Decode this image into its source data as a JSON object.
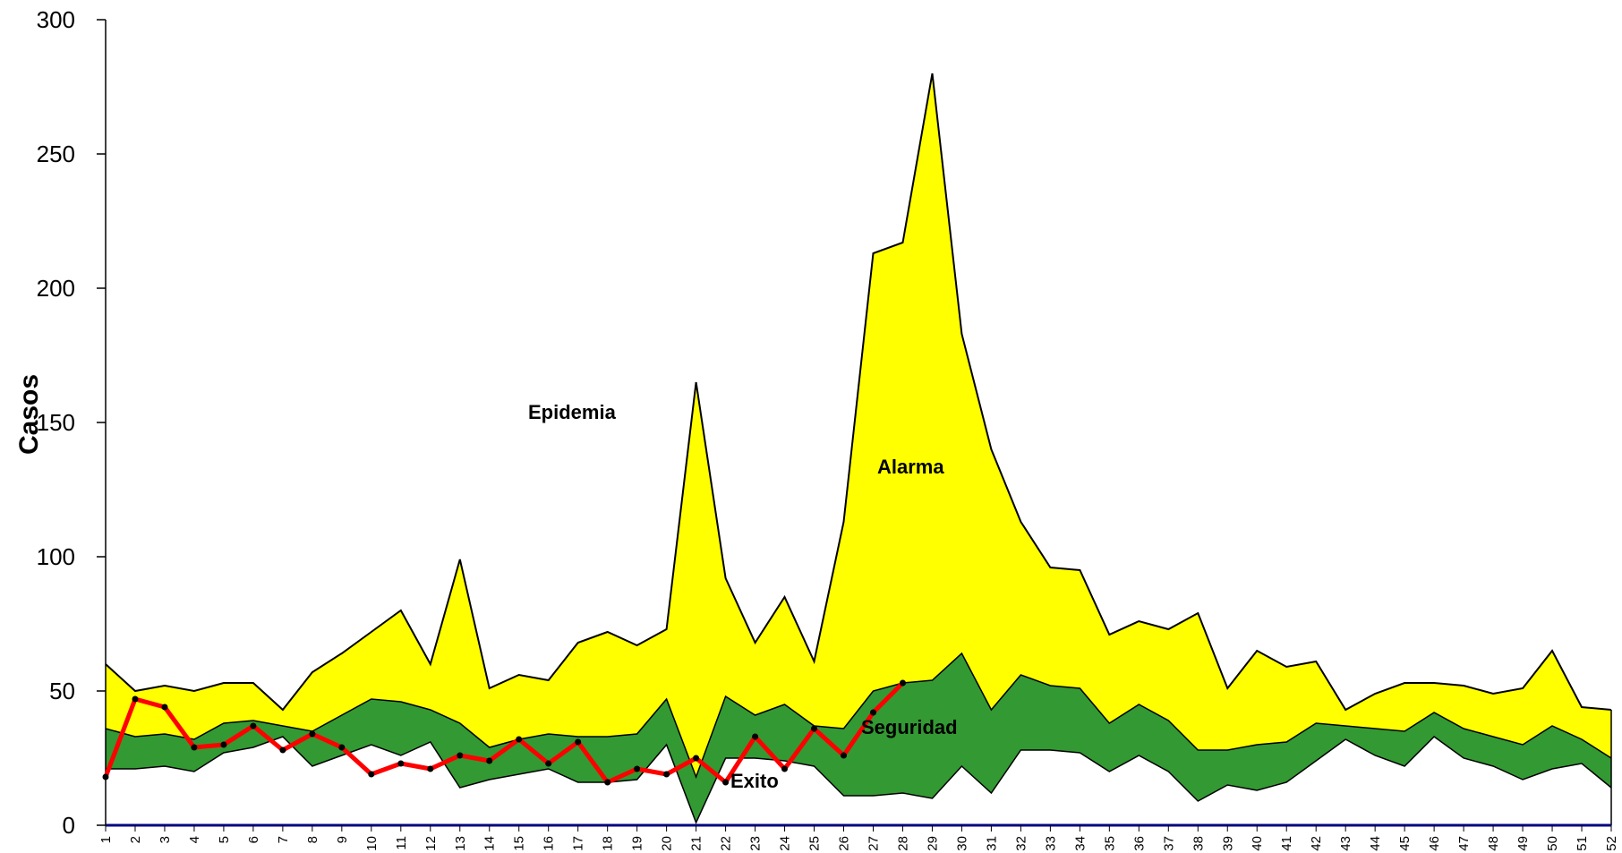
{
  "chart_data": {
    "type": "area",
    "ylabel": "Casos",
    "xlabel": "",
    "ylim": [
      0,
      300
    ],
    "yticks": [
      0,
      50,
      100,
      150,
      200,
      250,
      300
    ],
    "x": [
      1,
      2,
      3,
      4,
      5,
      6,
      7,
      8,
      9,
      10,
      11,
      12,
      13,
      14,
      15,
      16,
      17,
      18,
      19,
      20,
      21,
      22,
      23,
      24,
      25,
      26,
      27,
      28,
      29,
      30,
      31,
      32,
      33,
      34,
      35,
      36,
      37,
      38,
      39,
      40,
      41,
      42,
      43,
      44,
      45,
      46,
      47,
      48,
      49,
      50,
      51,
      52
    ],
    "x_labels": [
      "1",
      "2",
      "3",
      "4",
      "5",
      "6",
      "7",
      "8",
      "9",
      "10",
      "11",
      "12",
      "13",
      "14",
      "15",
      "16",
      "17",
      "18",
      "19",
      "20",
      "21",
      "22",
      "23",
      "24",
      "25",
      "26",
      "27",
      "28",
      "29",
      "30",
      "31",
      "32",
      "33",
      "34",
      "35",
      "36",
      "37",
      "38",
      "39",
      "40",
      "41",
      "42",
      "43",
      "44",
      "45",
      "46",
      "47",
      "48",
      "49",
      "50",
      "51",
      "52"
    ],
    "bands": {
      "exito": [
        21,
        21,
        22,
        20,
        27,
        29,
        33,
        22,
        26,
        30,
        26,
        31,
        14,
        17,
        19,
        21,
        16,
        16,
        17,
        30,
        1,
        25,
        25,
        24,
        22,
        11,
        11,
        12,
        10,
        22,
        12,
        28,
        28,
        27,
        20,
        26,
        20,
        9,
        15,
        13,
        16,
        24,
        32,
        26,
        22,
        33,
        25,
        22,
        17,
        21,
        23,
        14
      ],
      "seguridad": [
        36,
        33,
        34,
        32,
        38,
        39,
        37,
        35,
        41,
        47,
        46,
        43,
        38,
        29,
        32,
        34,
        33,
        33,
        34,
        47,
        18,
        48,
        41,
        45,
        37,
        36,
        50,
        53,
        54,
        64,
        43,
        56,
        52,
        51,
        38,
        45,
        39,
        28,
        28,
        30,
        31,
        38,
        37,
        36,
        35,
        42,
        36,
        33,
        30,
        37,
        32,
        25
      ],
      "alarma": [
        60,
        50,
        52,
        50,
        53,
        53,
        43,
        57,
        64,
        72,
        80,
        60,
        99,
        51,
        56,
        54,
        68,
        72,
        67,
        73,
        165,
        92,
        68,
        85,
        61,
        113,
        213,
        217,
        280,
        183,
        140,
        113,
        96,
        95,
        71,
        76,
        73,
        79,
        51,
        65,
        59,
        61,
        43,
        49,
        53,
        53,
        52,
        49,
        51,
        65,
        44,
        43
      ]
    },
    "series": [
      {
        "name": "",
        "x": [
          1,
          2,
          3,
          4,
          5,
          6,
          7,
          8,
          9,
          10,
          11,
          12,
          13,
          14,
          15,
          16,
          17,
          18,
          19,
          20,
          21,
          22,
          23,
          24,
          25,
          26,
          27,
          28
        ],
        "values": [
          18,
          47,
          44,
          29,
          30,
          37,
          28,
          34,
          29,
          19,
          23,
          21,
          26,
          24,
          32,
          23,
          31,
          16,
          21,
          19,
          25,
          16,
          33,
          21,
          36,
          26,
          42,
          53
        ]
      }
    ],
    "annotations": {
      "epidemia": "Epidemia",
      "alarma": "Alarma",
      "seguridad": "Seguridad",
      "exito": "Exito"
    },
    "colors": {
      "alarma_fill": "#ffff00",
      "seguridad_fill": "#339933",
      "exito_fill": "#ffffff",
      "cases_line": "#ff0000",
      "cases_points": "#000000",
      "axis": "#000000",
      "baseline": "#000080"
    }
  }
}
